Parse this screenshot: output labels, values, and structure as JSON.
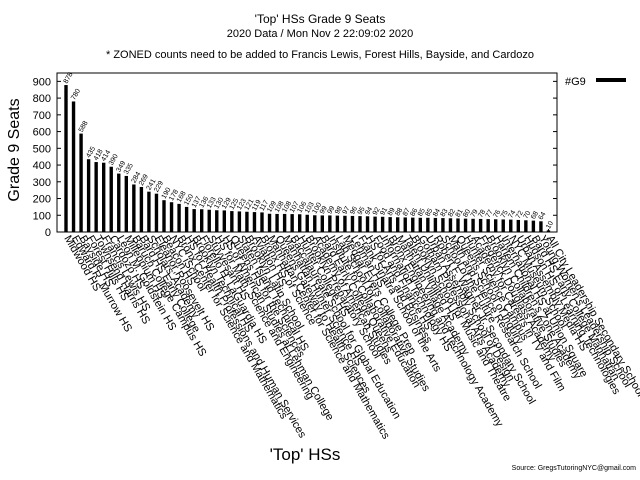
{
  "chart_data": {
    "type": "bar",
    "title_lines": [
      "'Top' HSs Grade 9 Seats",
      "2020 Data / Mon Nov  2 22:09:02 2020",
      "* ZONED counts need to be added to Francis Lewis, Forest Hills, Bayside, and Cardozo"
    ],
    "xlabel": "'Top' HSs",
    "ylabel": "Grade 9 Seats",
    "legend": "#G9",
    "legend_position": "top-right",
    "source": "Source: GregsTutoringNYC@gmail.com",
    "ylim": [
      0,
      950
    ],
    "yticks": [
      0,
      100,
      200,
      300,
      400,
      500,
      600,
      700,
      800,
      900
    ],
    "categories": [
      "Midwood HS",
      "Edward R. Murrow HS",
      "Bayside HS",
      "Forest Hills HS",
      "Townsend Harris HS",
      "Francis Lewis HS",
      "Cardozo HS",
      "Leon M. Goldstein HS",
      "Millennium HS",
      "Baruch College Campus HS",
      "Bard HS Early College",
      "Scholars' Academy",
      "Eleanor Roosevelt HS",
      "Beacon HS",
      "NYC iSchool",
      "Bronx Center for Science and Mathematics",
      "HS for Health Professions and Human Services",
      "Brooklyn Technical HS",
      "Fiorello H. LaGuardia HS",
      "Stuyvesant HS",
      "HS for Math, Science and Engineering",
      "HS of American Studies at Lehman College",
      "Queens HS for the Sciences",
      "Staten Island Technical HS",
      "Brooklyn Latin School",
      "Aviation HS",
      "Bronx HS of Science",
      "Manhattan Center for Science and Mathematics",
      "Queens Gateway to Health Sciences",
      "Manhattan Hunter Science HS",
      "Baccalaureate School for Global Education",
      "Hunter College HS",
      "Brooklyn Preparatory School",
      "Academy of American Studies",
      "Bard Early College Queens",
      "Institute for Collaborative Education",
      "Lab School for Collaborative Studies",
      "Medgar Evers College Prep",
      "Lehman HS",
      "Frank Sinatra School of the Arts",
      "HS for Arts and Business",
      "Food and Finance HS",
      "Information Technology HS",
      "Bronx Engineering and Technology Academy",
      "Manhattan Village Academy",
      "Talent Unlimited HS",
      "Brooklyn School for Music and Theatre",
      "Gotham Professional Arts Academy",
      "Urban Assembly School of Design",
      "Robert F. Wagner Jr. Secondary School",
      "School of the Future",
      "Math and Science Research School",
      "Queens School of Inquiry",
      "Hunter Science Campus",
      "Academy for Careers in TV and Film",
      "Frederick Douglass Academy",
      "Brooklyn Collaborative Studies",
      "Harlem Children's Zone Academy",
      "International HS at Union Square",
      "NYC Museum School",
      "Urban Assembly Media HS",
      "Hudson HS of Learning Technologies",
      "Bard HS Early College Manhattan",
      "Young Women's Leadership School",
      "All City Leadership Secondary School"
    ],
    "values": [
      878,
      780,
      588,
      435,
      418,
      414,
      390,
      349,
      335,
      284,
      269,
      241,
      229,
      190,
      178,
      168,
      150,
      137,
      136,
      133,
      130,
      129,
      125,
      123,
      121,
      119,
      117,
      109,
      108,
      108,
      107,
      106,
      103,
      100,
      99,
      99,
      98,
      97,
      96,
      95,
      94,
      92,
      91,
      89,
      88,
      87,
      86,
      85,
      85,
      84,
      83,
      82,
      81,
      80,
      79,
      78,
      77,
      76,
      75,
      74,
      72,
      70,
      68,
      64,
      10
    ]
  }
}
